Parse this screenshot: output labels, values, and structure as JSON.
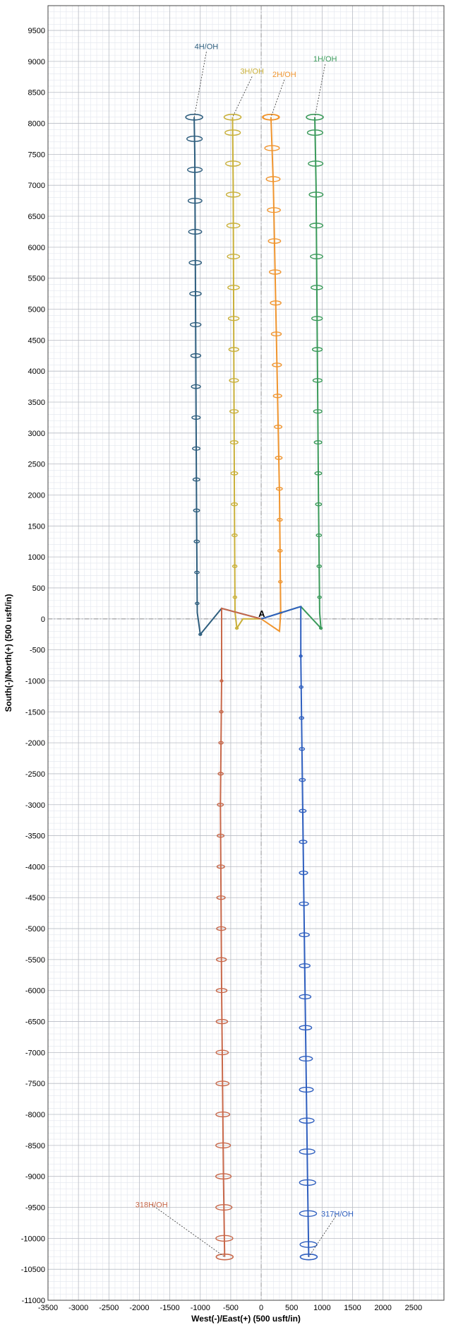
{
  "chart_data": {
    "type": "line",
    "xlabel": "West(-)/East(+) (500 usft/in)",
    "ylabel": "South(-)/North(+) (500 usft/in)",
    "xlim": [
      -3500,
      3000
    ],
    "ylim": [
      -11000,
      9900
    ],
    "x_ticks": [
      -3500,
      -3000,
      -2500,
      -2000,
      -1500,
      -1000,
      -500,
      0,
      500,
      1000,
      1500,
      2000,
      2500
    ],
    "y_ticks": [
      9500,
      9000,
      8500,
      8000,
      7500,
      7000,
      6500,
      6000,
      5500,
      5000,
      4500,
      4000,
      3500,
      3000,
      2500,
      2000,
      1500,
      1000,
      500,
      0,
      -500,
      -1000,
      -1500,
      -2000,
      -2500,
      -3000,
      -3500,
      -4000,
      -4500,
      -5000,
      -5500,
      -6000,
      -6500,
      -7000,
      -7500,
      -8000,
      -8500,
      -9000,
      -9500,
      -10000,
      -10500,
      -11000
    ],
    "grid": true,
    "reference_label": "A",
    "series": [
      {
        "name": "4H/OH",
        "color": "#2e5e7e",
        "x": [
          0,
          -650,
          -1000,
          -1050,
          -1060,
          -1070,
          -1080,
          -1090,
          -1100
        ],
        "y": [
          0,
          170,
          -250,
          100,
          1500,
          3500,
          5500,
          7500,
          8100
        ],
        "label_x": -900,
        "label_y": 9200
      },
      {
        "name": "3H/OH",
        "color": "#c9b03a",
        "x": [
          0,
          -300,
          -400,
          -430,
          -440,
          -450,
          -460,
          -470
        ],
        "y": [
          0,
          0,
          -150,
          100,
          2000,
          4500,
          7000,
          8100
        ],
        "label_x": -150,
        "label_y": 8800
      },
      {
        "name": "2H/OH",
        "color": "#f0952f",
        "x": [
          0,
          300,
          320,
          300,
          250,
          200,
          160
        ],
        "y": [
          0,
          -200,
          100,
          2000,
          4500,
          7000,
          8100
        ],
        "label_x": 380,
        "label_y": 8750
      },
      {
        "name": "1H/OH",
        "color": "#3a9a5a",
        "x": [
          0,
          650,
          980,
          960,
          940,
          920,
          900,
          880
        ],
        "y": [
          0,
          200,
          -150,
          100,
          2000,
          4500,
          7000,
          8100
        ],
        "label_x": 1050,
        "label_y": 9000
      },
      {
        "name": "318H/OH",
        "color": "#c8684a",
        "x": [
          0,
          -650,
          -650,
          -670,
          -650,
          -620,
          -600
        ],
        "y": [
          0,
          170,
          -1000,
          -3000,
          -6000,
          -9000,
          -10300
        ],
        "label_x": -1800,
        "label_y": -9500
      },
      {
        "name": "317H/OH",
        "color": "#2f5fbf",
        "x": [
          0,
          650,
          650,
          680,
          720,
          760,
          780
        ],
        "y": [
          0,
          200,
          -600,
          -3000,
          -6000,
          -9000,
          -10300
        ],
        "label_x": 1250,
        "label_y": -9650
      }
    ]
  }
}
